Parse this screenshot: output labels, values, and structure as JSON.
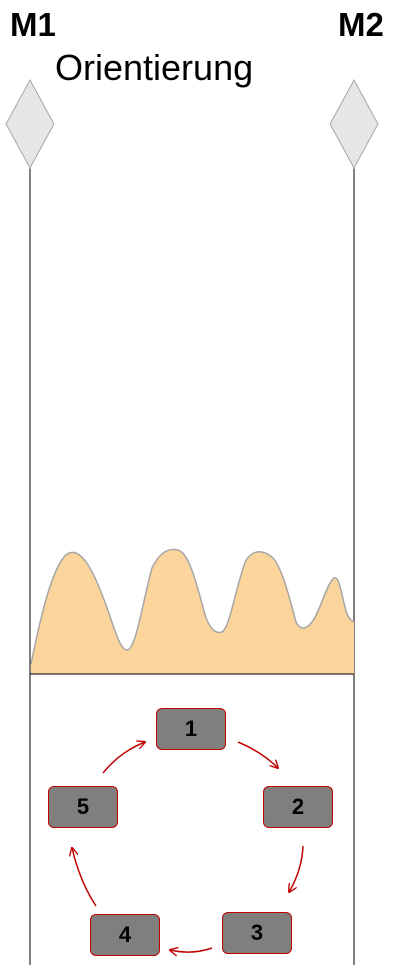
{
  "milestones": {
    "start_label": "M1",
    "end_label": "M2"
  },
  "phase": {
    "title": "Orientierung"
  },
  "cycle": {
    "steps": [
      "1",
      "2",
      "3",
      "4",
      "5"
    ]
  },
  "colors": {
    "wave_fill": "#fcd59c",
    "wave_stroke": "#a6a6a6",
    "diamond_fill": "#e6e6e6",
    "diamond_stroke": "#a6a6a6",
    "box_fill": "#7f7f7f",
    "box_border": "#c00000",
    "arrow": "#c00000",
    "line": "#000000"
  }
}
